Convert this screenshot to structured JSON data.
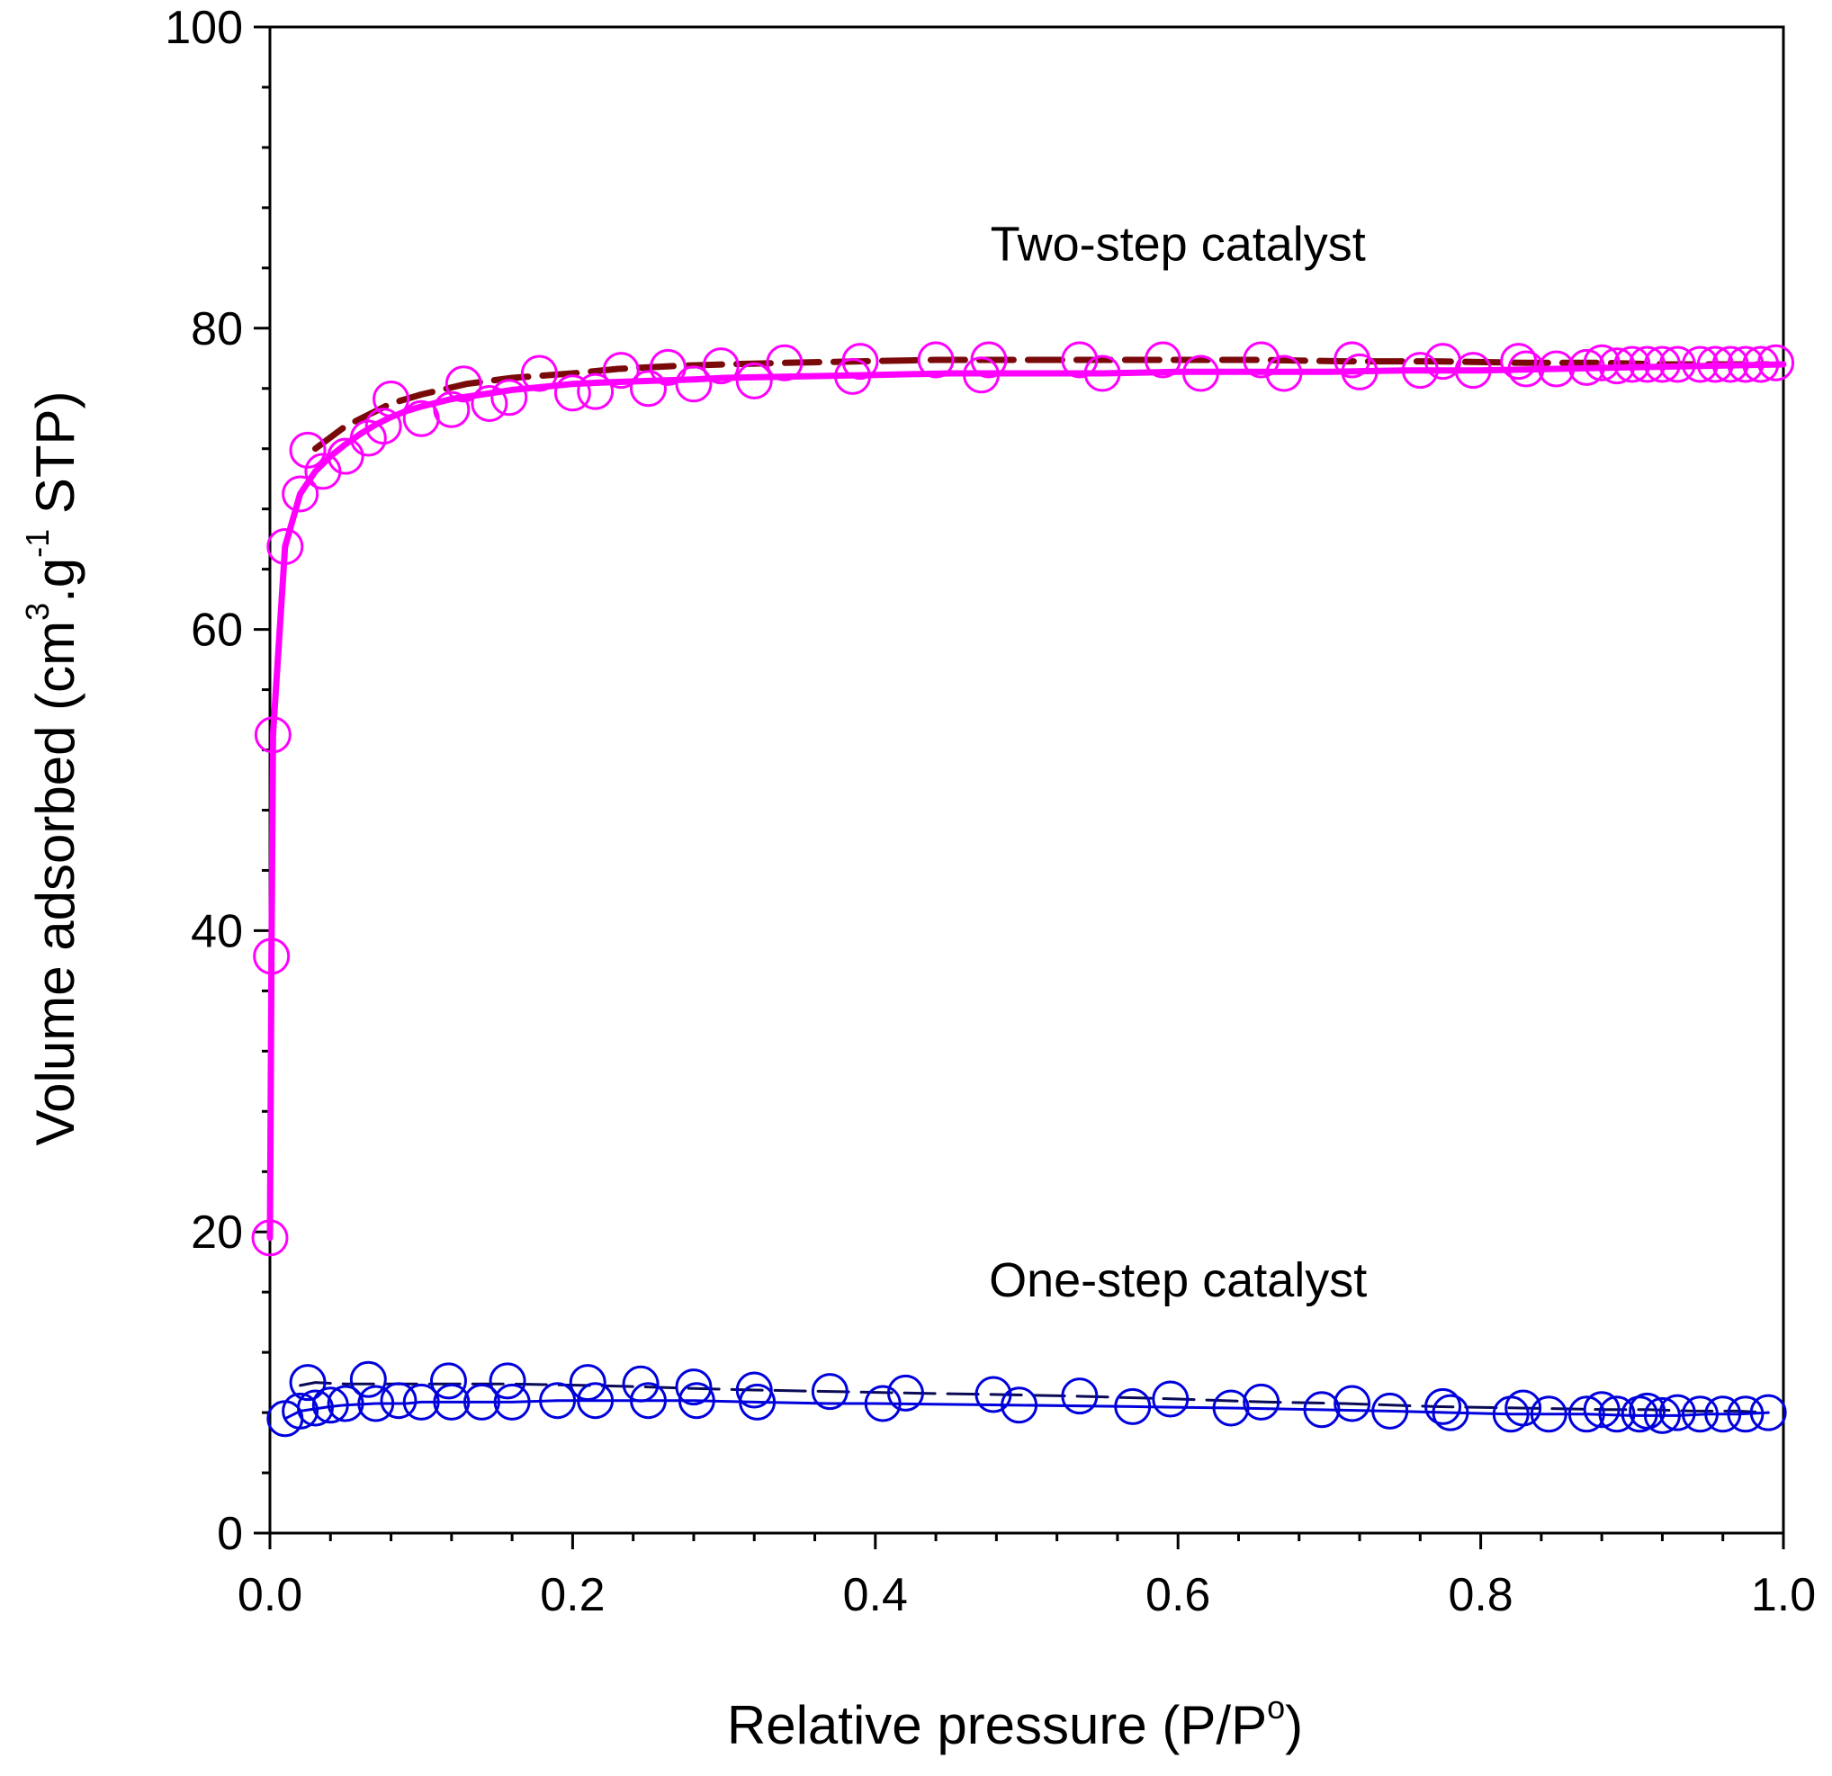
{
  "chart_data": {
    "type": "scatter",
    "title": "",
    "xlabel": {
      "main": "Relative pressure (P/P",
      "sup": "o",
      "tail": ")"
    },
    "ylabel": {
      "p1": "Volume adsorbed (cm",
      "s1": "3",
      "p2": ".g",
      "s2": "-1",
      "p3": " STP)"
    },
    "xlim": [
      0,
      1
    ],
    "ylim": [
      0,
      100
    ],
    "x_ticks": [
      "0.0",
      "0.2",
      "0.4",
      "0.6",
      "0.8",
      "1.0"
    ],
    "y_ticks": [
      "0",
      "20",
      "40",
      "60",
      "80",
      "100"
    ],
    "annotations": [
      {
        "text": "Two-step catalyst",
        "x": 0.6,
        "y": 84.5
      },
      {
        "text": "One-step catalyst",
        "x": 0.6,
        "y": 15.7
      }
    ],
    "series": [
      {
        "name": "Two-step catalyst adsorption",
        "color": "#ff00ff",
        "x": [
          0.0,
          0.001,
          0.002,
          0.01,
          0.02,
          0.03,
          0.04,
          0.05,
          0.06,
          0.07,
          0.08,
          0.09,
          0.1,
          0.12,
          0.14,
          0.16,
          0.18,
          0.2,
          0.22,
          0.25,
          0.28,
          0.3,
          0.35,
          0.4,
          0.45,
          0.5,
          0.55,
          0.6,
          0.65,
          0.7,
          0.75,
          0.8,
          0.85,
          0.9,
          0.95,
          1.0
        ],
        "values": [
          19.6,
          38.3,
          53.0,
          65.5,
          69.0,
          70.5,
          71.5,
          72.3,
          73.0,
          73.6,
          74.1,
          74.5,
          74.8,
          75.3,
          75.6,
          75.9,
          76.1,
          76.3,
          76.4,
          76.5,
          76.6,
          76.7,
          76.8,
          76.9,
          77.0,
          77.0,
          77.0,
          77.1,
          77.1,
          77.1,
          77.2,
          77.2,
          77.3,
          77.4,
          77.5,
          77.6
        ]
      },
      {
        "name": "Two-step catalyst desorption",
        "color": "#7a0a0a",
        "x": [
          0.03,
          0.05,
          0.08,
          0.1,
          0.13,
          0.16,
          0.2,
          0.23,
          0.27,
          0.3,
          0.34,
          0.39,
          0.44,
          0.48,
          0.53,
          0.6,
          0.65,
          0.71,
          0.77,
          0.83,
          0.88,
          0.92,
          0.96,
          0.99
        ],
        "values": [
          72.0,
          73.5,
          75.0,
          75.6,
          76.3,
          76.7,
          77.0,
          77.3,
          77.5,
          77.6,
          77.7,
          77.8,
          77.9,
          77.9,
          77.9,
          77.9,
          77.9,
          77.8,
          77.8,
          77.7,
          77.7,
          77.6,
          77.6,
          77.6
        ]
      },
      {
        "name": "One-step catalyst adsorption",
        "color": "#0000dd",
        "x": [
          0.01,
          0.02,
          0.04,
          0.05,
          0.07,
          0.09,
          0.1,
          0.12,
          0.14,
          0.16,
          0.19,
          0.21,
          0.22,
          0.25,
          0.28,
          0.32,
          0.37,
          0.4,
          0.49,
          0.57,
          0.64,
          0.69,
          0.74,
          0.78,
          0.82,
          0.85,
          0.87,
          0.9,
          0.93,
          0.95,
          0.97,
          0.99
        ],
        "values": [
          7.6,
          8.1,
          8.4,
          8.5,
          8.6,
          8.6,
          8.7,
          8.7,
          8.7,
          8.7,
          8.8,
          8.8,
          8.8,
          8.8,
          8.8,
          8.7,
          8.6,
          8.6,
          8.5,
          8.4,
          8.3,
          8.2,
          8.1,
          8.0,
          7.9,
          7.9,
          7.9,
          7.8,
          7.8,
          7.9,
          7.9,
          8.0
        ]
      },
      {
        "name": "One-step catalyst desorption",
        "color": "#0a0a55",
        "x": [
          0.02,
          0.03,
          0.05,
          0.07,
          0.09,
          0.12,
          0.16,
          0.21,
          0.25,
          0.28,
          0.32,
          0.37,
          0.42,
          0.48,
          0.53,
          0.6,
          0.66,
          0.71,
          0.77,
          0.83,
          0.88,
          0.91,
          0.94,
          0.97,
          0.99
        ],
        "values": [
          9.8,
          10.0,
          9.9,
          9.9,
          9.9,
          9.9,
          9.9,
          9.8,
          9.7,
          9.6,
          9.5,
          9.4,
          9.3,
          9.2,
          9.1,
          8.9,
          8.7,
          8.6,
          8.4,
          8.3,
          8.2,
          8.2,
          8.1,
          8.1,
          8.0
        ]
      }
    ],
    "marker_points": [
      {
        "series": "two-step",
        "color": "#ff00ff",
        "points": [
          [
            0.0,
            19.6
          ],
          [
            0.001,
            38.3
          ],
          [
            0.002,
            53.0
          ],
          [
            0.01,
            65.5
          ],
          [
            0.02,
            69.0
          ],
          [
            0.025,
            71.9
          ],
          [
            0.035,
            70.5
          ],
          [
            0.05,
            71.5
          ],
          [
            0.065,
            72.7
          ],
          [
            0.075,
            73.5
          ],
          [
            0.08,
            75.3
          ],
          [
            0.1,
            74.0
          ],
          [
            0.12,
            74.6
          ],
          [
            0.128,
            76.3
          ],
          [
            0.145,
            75.0
          ],
          [
            0.158,
            75.4
          ],
          [
            0.178,
            77.0
          ],
          [
            0.2,
            75.7
          ],
          [
            0.215,
            75.8
          ],
          [
            0.232,
            77.2
          ],
          [
            0.25,
            76.0
          ],
          [
            0.263,
            77.4
          ],
          [
            0.28,
            76.3
          ],
          [
            0.298,
            77.5
          ],
          [
            0.32,
            76.5
          ],
          [
            0.34,
            77.7
          ],
          [
            0.385,
            76.8
          ],
          [
            0.39,
            77.8
          ],
          [
            0.44,
            77.9
          ],
          [
            0.475,
            77.9
          ],
          [
            0.47,
            76.9
          ],
          [
            0.535,
            77.9
          ],
          [
            0.55,
            77.0
          ],
          [
            0.59,
            77.9
          ],
          [
            0.615,
            77.0
          ],
          [
            0.655,
            77.9
          ],
          [
            0.67,
            77.0
          ],
          [
            0.715,
            77.9
          ],
          [
            0.72,
            77.1
          ],
          [
            0.76,
            77.2
          ],
          [
            0.775,
            77.8
          ],
          [
            0.795,
            77.2
          ],
          [
            0.825,
            77.8
          ],
          [
            0.83,
            77.3
          ],
          [
            0.85,
            77.3
          ],
          [
            0.87,
            77.4
          ],
          [
            0.88,
            77.7
          ],
          [
            0.89,
            77.5
          ],
          [
            0.9,
            77.6
          ],
          [
            0.91,
            77.6
          ],
          [
            0.92,
            77.6
          ],
          [
            0.93,
            77.6
          ],
          [
            0.945,
            77.6
          ],
          [
            0.955,
            77.6
          ],
          [
            0.965,
            77.6
          ],
          [
            0.975,
            77.6
          ],
          [
            0.985,
            77.6
          ],
          [
            0.995,
            77.7
          ]
        ]
      },
      {
        "series": "one-step",
        "color": "#0000dd",
        "points": [
          [
            0.01,
            7.6
          ],
          [
            0.02,
            8.1
          ],
          [
            0.025,
            10.0
          ],
          [
            0.03,
            8.3
          ],
          [
            0.04,
            8.5
          ],
          [
            0.05,
            8.6
          ],
          [
            0.065,
            10.2
          ],
          [
            0.07,
            8.6
          ],
          [
            0.085,
            8.8
          ],
          [
            0.1,
            8.7
          ],
          [
            0.118,
            10.1
          ],
          [
            0.12,
            8.7
          ],
          [
            0.14,
            8.7
          ],
          [
            0.157,
            10.1
          ],
          [
            0.16,
            8.7
          ],
          [
            0.19,
            8.8
          ],
          [
            0.21,
            10.0
          ],
          [
            0.215,
            8.8
          ],
          [
            0.245,
            9.9
          ],
          [
            0.25,
            8.8
          ],
          [
            0.28,
            9.7
          ],
          [
            0.282,
            8.8
          ],
          [
            0.32,
            9.5
          ],
          [
            0.322,
            8.7
          ],
          [
            0.37,
            9.4
          ],
          [
            0.405,
            8.6
          ],
          [
            0.42,
            9.3
          ],
          [
            0.478,
            9.2
          ],
          [
            0.495,
            8.5
          ],
          [
            0.535,
            9.1
          ],
          [
            0.57,
            8.4
          ],
          [
            0.595,
            8.9
          ],
          [
            0.635,
            8.3
          ],
          [
            0.655,
            8.7
          ],
          [
            0.695,
            8.2
          ],
          [
            0.715,
            8.6
          ],
          [
            0.74,
            8.1
          ],
          [
            0.775,
            8.4
          ],
          [
            0.78,
            8.0
          ],
          [
            0.82,
            7.9
          ],
          [
            0.828,
            8.3
          ],
          [
            0.845,
            7.9
          ],
          [
            0.87,
            7.9
          ],
          [
            0.88,
            8.2
          ],
          [
            0.89,
            7.9
          ],
          [
            0.905,
            7.9
          ],
          [
            0.91,
            8.1
          ],
          [
            0.92,
            7.8
          ],
          [
            0.93,
            8.0
          ],
          [
            0.945,
            7.9
          ],
          [
            0.96,
            7.9
          ],
          [
            0.975,
            7.9
          ],
          [
            0.99,
            8.0
          ]
        ]
      }
    ]
  }
}
